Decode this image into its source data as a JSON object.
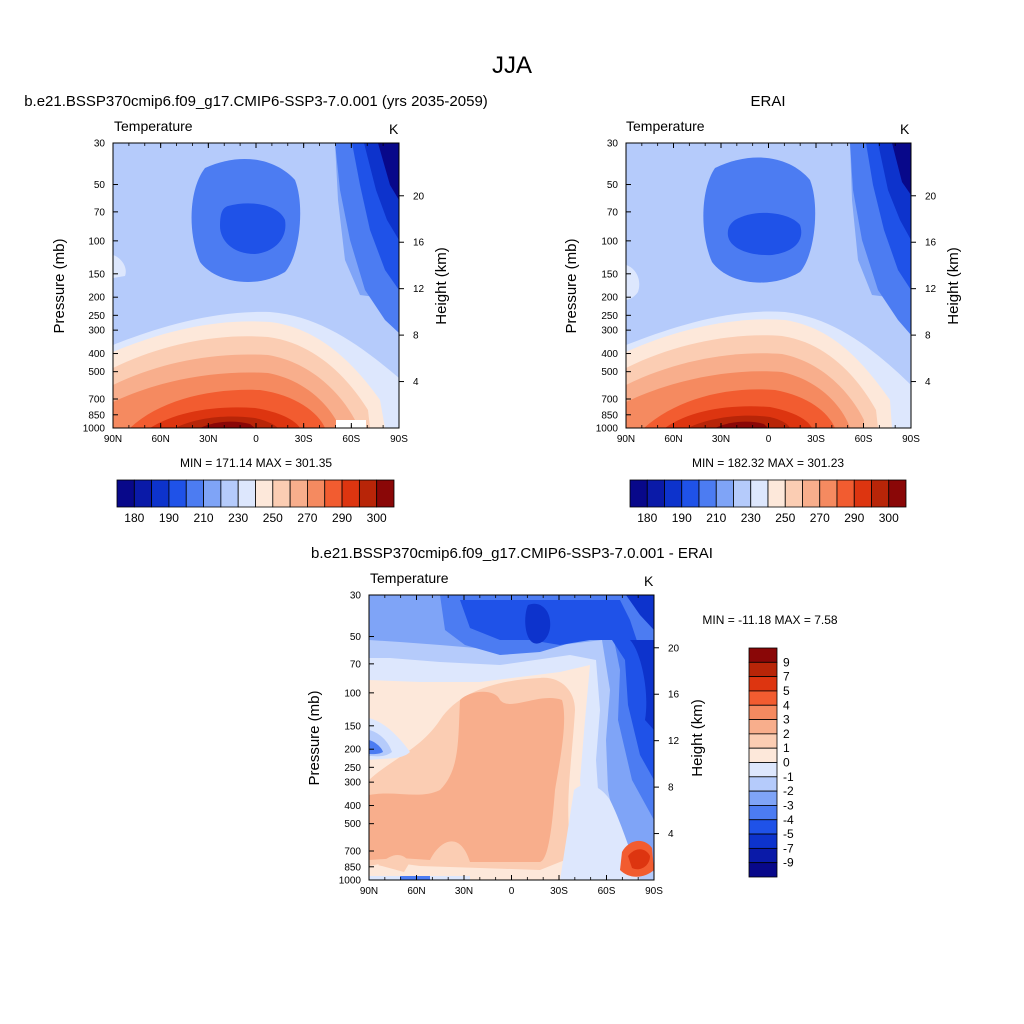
{
  "figure": {
    "title": "JJA"
  },
  "colors": {
    "levels_main": [
      "#08088a",
      "#0a1aa8",
      "#0d33cc",
      "#1f52e8",
      "#4c7cf2",
      "#7fa4f7",
      "#b5cbfb",
      "#dde7fd",
      "#fde8da",
      "#fbcdb3",
      "#f8ae8c",
      "#f58a60",
      "#f25c30",
      "#dd3510",
      "#b82508",
      "#8a0707"
    ],
    "levels_diff": [
      "#08088a",
      "#0a1aa8",
      "#0d33cc",
      "#1f52e8",
      "#4c7cf2",
      "#7fa4f7",
      "#b5cbfb",
      "#dde7fd",
      "#fde8da",
      "#fbcdb3",
      "#f8ae8c",
      "#f58a60",
      "#f25c30",
      "#dd3510",
      "#b82508",
      "#8a0707"
    ]
  },
  "chart_data": [
    {
      "type": "heatmap",
      "title": "b.e21.BSSP370cmip6.f09_g17.CMIP6-SSP3-7.0.001 (yrs 2035-2059)",
      "left_label": "Temperature",
      "units": "K",
      "xlabel": "",
      "ylabel": "Pressure (mb)",
      "ylabel_right": "Height (km)",
      "x_ticks": [
        "90N",
        "60N",
        "30N",
        "0",
        "30S",
        "60S",
        "90S"
      ],
      "y_ticks": [
        "30",
        "50",
        "70",
        "100",
        "150",
        "200",
        "250",
        "300",
        "400",
        "500",
        "700",
        "850",
        "1000"
      ],
      "y_ticks_right": [
        "20",
        "16",
        "12",
        "8",
        "4"
      ],
      "min": "171.14",
      "max": "301.35",
      "minmax_text": "MIN = 171.14   MAX = 301.35",
      "colorbar_labels": [
        "180",
        "190",
        "210",
        "230",
        "250",
        "270",
        "290",
        "300"
      ],
      "colorbar_levels": 16
    },
    {
      "type": "heatmap",
      "title": "ERAI",
      "left_label": "Temperature",
      "units": "K",
      "xlabel": "",
      "ylabel": "Pressure (mb)",
      "ylabel_right": "Height (km)",
      "x_ticks": [
        "90N",
        "60N",
        "30N",
        "0",
        "30S",
        "60S",
        "90S"
      ],
      "y_ticks": [
        "30",
        "50",
        "70",
        "100",
        "150",
        "200",
        "250",
        "300",
        "400",
        "500",
        "700",
        "850",
        "1000"
      ],
      "y_ticks_right": [
        "20",
        "16",
        "12",
        "8",
        "4"
      ],
      "min": "182.32",
      "max": "301.23",
      "minmax_text": "MIN = 182.32   MAX = 301.23",
      "colorbar_labels": [
        "180",
        "190",
        "210",
        "230",
        "250",
        "270",
        "290",
        "300"
      ],
      "colorbar_levels": 16
    },
    {
      "type": "heatmap",
      "title": "b.e21.BSSP370cmip6.f09_g17.CMIP6-SSP3-7.0.001 - ERAI",
      "left_label": "Temperature",
      "units": "K",
      "xlabel": "",
      "ylabel": "Pressure (mb)",
      "ylabel_right": "Height (km)",
      "x_ticks": [
        "90N",
        "60N",
        "30N",
        "0",
        "30S",
        "60S",
        "90S"
      ],
      "y_ticks": [
        "30",
        "50",
        "70",
        "100",
        "150",
        "200",
        "250",
        "300",
        "400",
        "500",
        "700",
        "850",
        "1000"
      ],
      "y_ticks_right": [
        "20",
        "16",
        "12",
        "8",
        "4"
      ],
      "min": "-11.18",
      "max": "7.58",
      "minmax_text": "MIN = -11.18   MAX =   7.58",
      "colorbar_labels": [
        "9",
        "7",
        "5",
        "4",
        "3",
        "2",
        "1",
        "0",
        "-1",
        "-2",
        "-3",
        "-4",
        "-5",
        "-7",
        "-9"
      ],
      "colorbar_levels": 16
    }
  ]
}
